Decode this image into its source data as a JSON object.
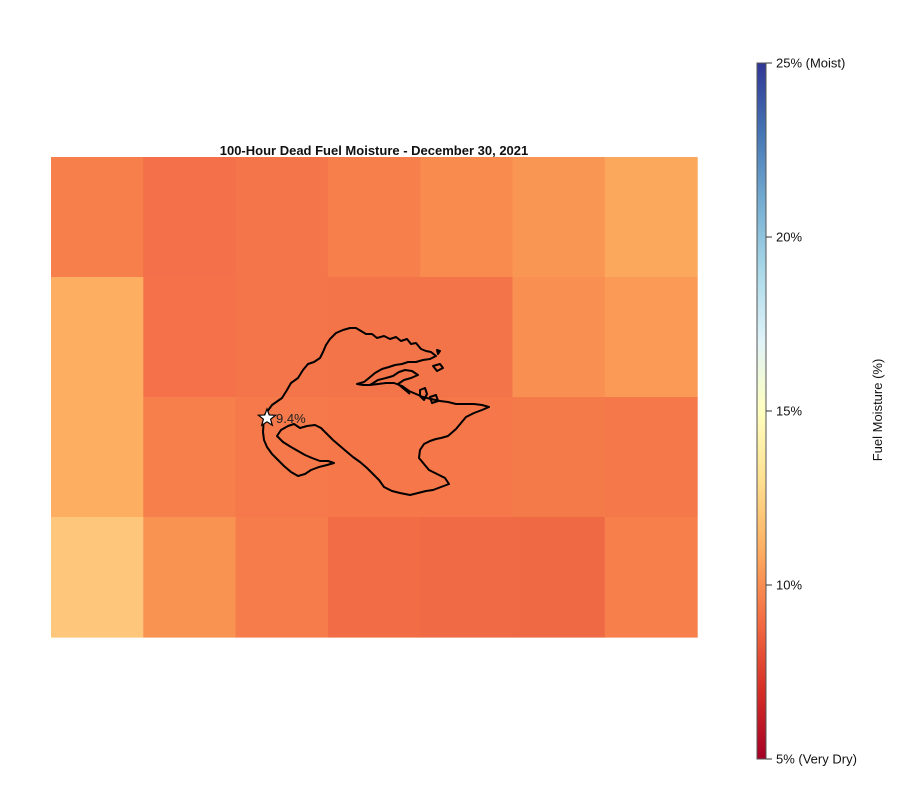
{
  "title": "100-Hour Dead Fuel Moisture - December 30, 2021",
  "colorbar": {
    "label": "Fuel Moisture (%)",
    "ticks": [
      {
        "value": 25,
        "label": "25% (Moist)"
      },
      {
        "value": 20,
        "label": "20%"
      },
      {
        "value": 15,
        "label": "15%"
      },
      {
        "value": 10,
        "label": "10%"
      },
      {
        "value": 5,
        "label": "5% (Very Dry)"
      }
    ],
    "colormap": "RdYlBu",
    "stops": [
      "#a50026",
      "#d73027",
      "#f46d43",
      "#fdae61",
      "#fee090",
      "#ffffbf",
      "#e0f3f8",
      "#abd9e9",
      "#74add1",
      "#4575b4",
      "#313695"
    ]
  },
  "chart_data": {
    "type": "heatmap",
    "title": "100-Hour Dead Fuel Moisture - December 30, 2021",
    "value_range": [
      5,
      25
    ],
    "grid": false,
    "rows": 4,
    "cols": 7,
    "values": [
      [
        9.8,
        9.2,
        9.4,
        10.0,
        10.3,
        10.9,
        11.6
      ],
      [
        11.8,
        9.3,
        9.4,
        9.4,
        9.4,
        10.6,
        11.1
      ],
      [
        11.8,
        10.0,
        9.6,
        9.6,
        9.6,
        9.8,
        9.6
      ],
      [
        12.6,
        10.6,
        9.7,
        9.2,
        9.0,
        9.0,
        9.7
      ]
    ],
    "colors": [
      [
        "#f67f4b",
        "#f4704a",
        "#f4754a",
        "#f77f4b",
        "#f98b4f",
        "#fa9654",
        "#fba85c"
      ],
      [
        "#fdae61",
        "#f4714a",
        "#f4754a",
        "#f4744a",
        "#f4744a",
        "#f98f51",
        "#fa9a56"
      ],
      [
        "#fdae61",
        "#f67f4b",
        "#f5794a",
        "#f5774a",
        "#f5774a",
        "#f57a4a",
        "#f5784a"
      ],
      [
        "#fec67a",
        "#f99351",
        "#f67d4b",
        "#f26d46",
        "#f06a45",
        "#ef6944",
        "#f67f4b"
      ]
    ],
    "marker": {
      "label": "9.4%",
      "symbol": "star-icon"
    }
  }
}
